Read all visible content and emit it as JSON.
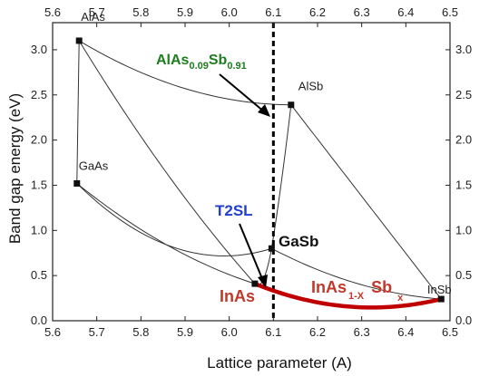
{
  "chart_data": {
    "type": "line",
    "xlabel": "Lattice parameter (A)",
    "ylabel": "Band gap energy (eV)",
    "xlim": [
      5.6,
      6.5
    ],
    "ylim": [
      0.0,
      3.3
    ],
    "x_ticks": [
      "5.6",
      "5.7",
      "5.8",
      "5.9",
      "6.0",
      "6.1",
      "6.2",
      "6.3",
      "6.4",
      "6.5"
    ],
    "y_ticks": [
      "0.0",
      "0.5",
      "1.0",
      "1.5",
      "2.0",
      "2.5",
      "3.0"
    ],
    "tick_values_x": [
      5.6,
      5.7,
      5.8,
      5.9,
      6.0,
      6.1,
      6.2,
      6.3,
      6.4,
      6.5
    ],
    "tick_values_y": [
      0.0,
      0.5,
      1.0,
      1.5,
      2.0,
      2.5,
      3.0
    ],
    "top_axis_mirrored": true,
    "right_axis_mirrored": true,
    "grid": false,
    "points": [
      {
        "name": "AlAs",
        "x": 5.66,
        "y": 3.1
      },
      {
        "name": "AlSb",
        "x": 6.14,
        "y": 2.39
      },
      {
        "name": "GaAs",
        "x": 5.655,
        "y": 1.52
      },
      {
        "name": "GaSb",
        "x": 6.096,
        "y": 0.8
      },
      {
        "name": "InAs",
        "x": 6.058,
        "y": 0.41
      },
      {
        "name": "InSb",
        "x": 6.48,
        "y": 0.24
      }
    ],
    "curves": [
      {
        "from": "AlAs",
        "to": "AlSb",
        "bowing": 0.7
      },
      {
        "from": "AlAs",
        "to": "GaAs",
        "bowing": 0.0
      },
      {
        "from": "AlAs",
        "to": "InAs",
        "bowing": 0.5
      },
      {
        "from": "GaAs",
        "to": "InAs",
        "bowing": 0.48
      },
      {
        "from": "GaAs",
        "to": "GaSb",
        "bowing": 1.4
      },
      {
        "from": "AlSb",
        "to": "GaSb",
        "bowing": 0.25
      },
      {
        "from": "AlSb",
        "to": "InSb",
        "bowing": 0.0
      },
      {
        "from": "GaSb",
        "to": "InSb",
        "bowing": 0.42
      },
      {
        "from": "GaSb",
        "to": "InAs",
        "bowing": 0.6
      },
      {
        "from": "InAs",
        "to": "InSb",
        "bowing": 0.67,
        "highlight": true
      }
    ],
    "vertical_line_x": 6.1,
    "highlight_color": "#c00000",
    "annotations": {
      "alassb_base": "AlAs",
      "alassb_sub1": "0.09",
      "alassb_mid": "Sb",
      "alassb_sub2": "0.91",
      "alassb_color": "#1e7d1e",
      "t2sl": "T2SL",
      "t2sl_color": "#1f3fd0",
      "gasb_big": "GaSb",
      "inas_big": "InAs",
      "inassb_base": "InAs",
      "inassb_sub1": "1-X",
      "inassb_mid": "Sb",
      "inassb_sub2": "x"
    }
  }
}
